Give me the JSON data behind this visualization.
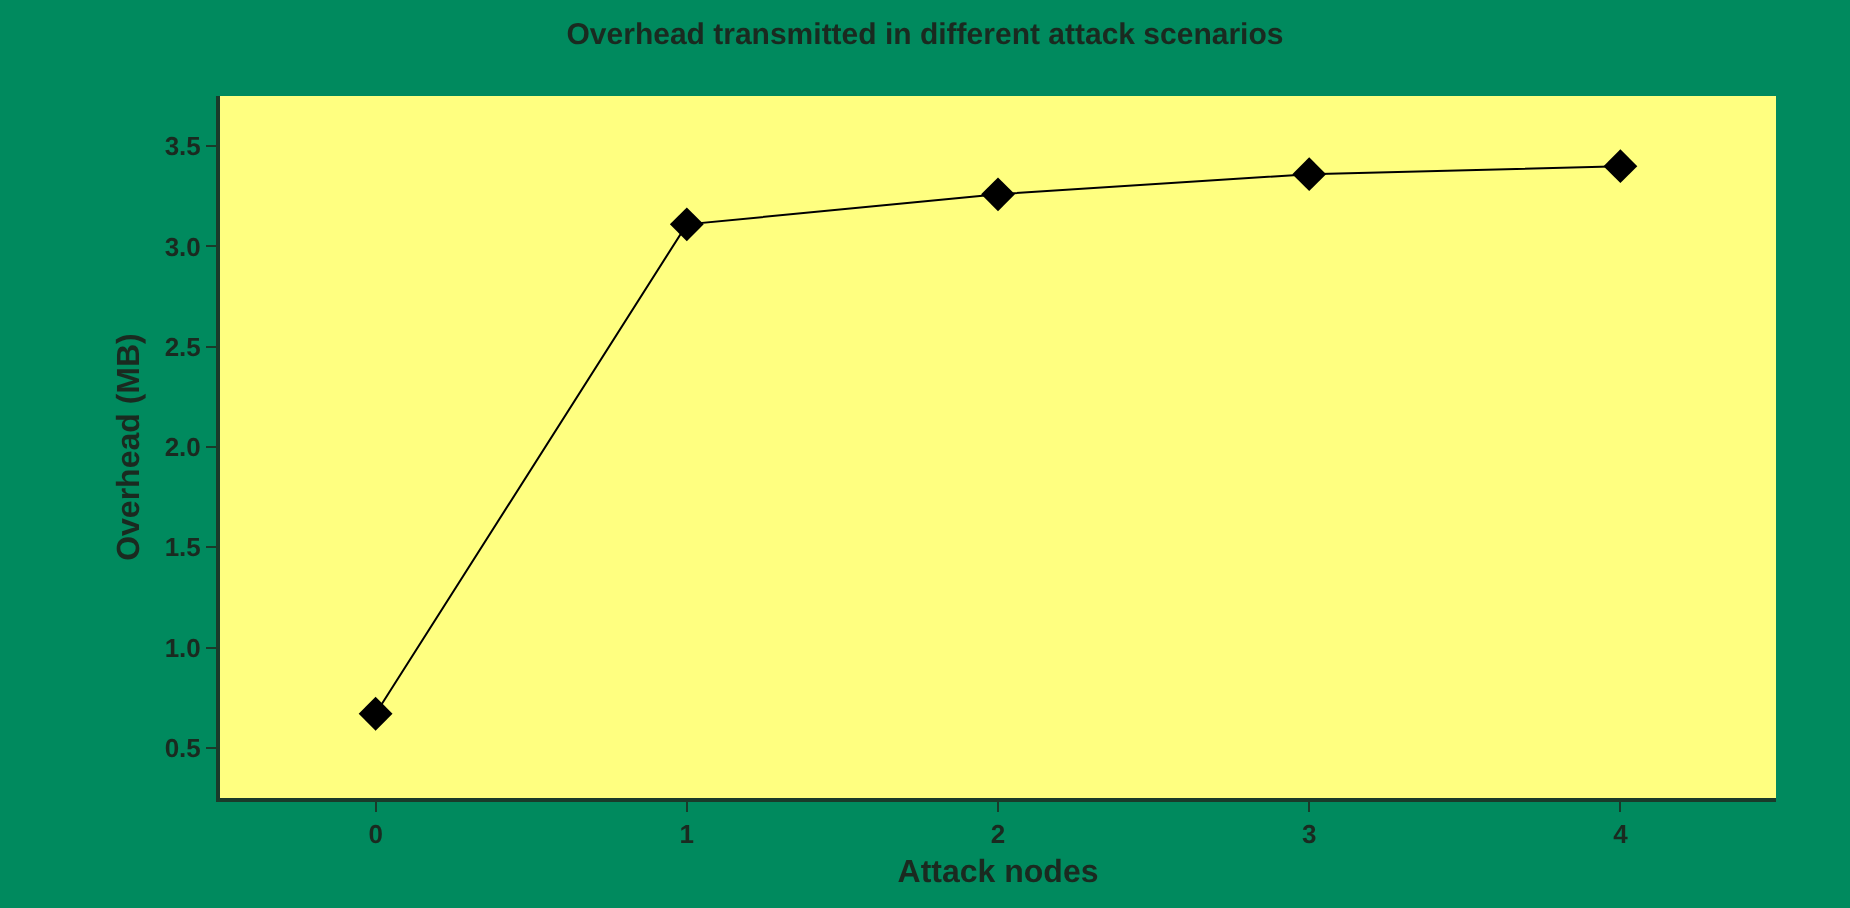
{
  "chart_data": {
    "type": "line",
    "title": "Overhead transmitted in different attack scenarios",
    "xlabel": "Attack nodes",
    "ylabel": "Overhead (MB)",
    "x": [
      0,
      1,
      2,
      3,
      4
    ],
    "series": [
      {
        "color": "#000000",
        "values": [
          0.67,
          3.11,
          3.26,
          3.36,
          3.4
        ]
      }
    ],
    "xlim": [
      -0.5,
      4.5
    ],
    "xticks": [
      0,
      1,
      2,
      3,
      4
    ],
    "ylim": [
      0.25,
      3.75
    ],
    "yticks": [
      {
        "value": 0.5,
        "label": "0.5"
      },
      {
        "value": 1.0,
        "label": "1.0"
      },
      {
        "value": 1.5,
        "label": "1.5"
      },
      {
        "value": 2.0,
        "label": "2.0"
      },
      {
        "value": 2.5,
        "label": "2.5"
      },
      {
        "value": 3.0,
        "label": "3.0"
      },
      {
        "value": 3.5,
        "label": "3.5"
      }
    ],
    "marker": "diamond",
    "line_style": "solid",
    "grid": false
  }
}
